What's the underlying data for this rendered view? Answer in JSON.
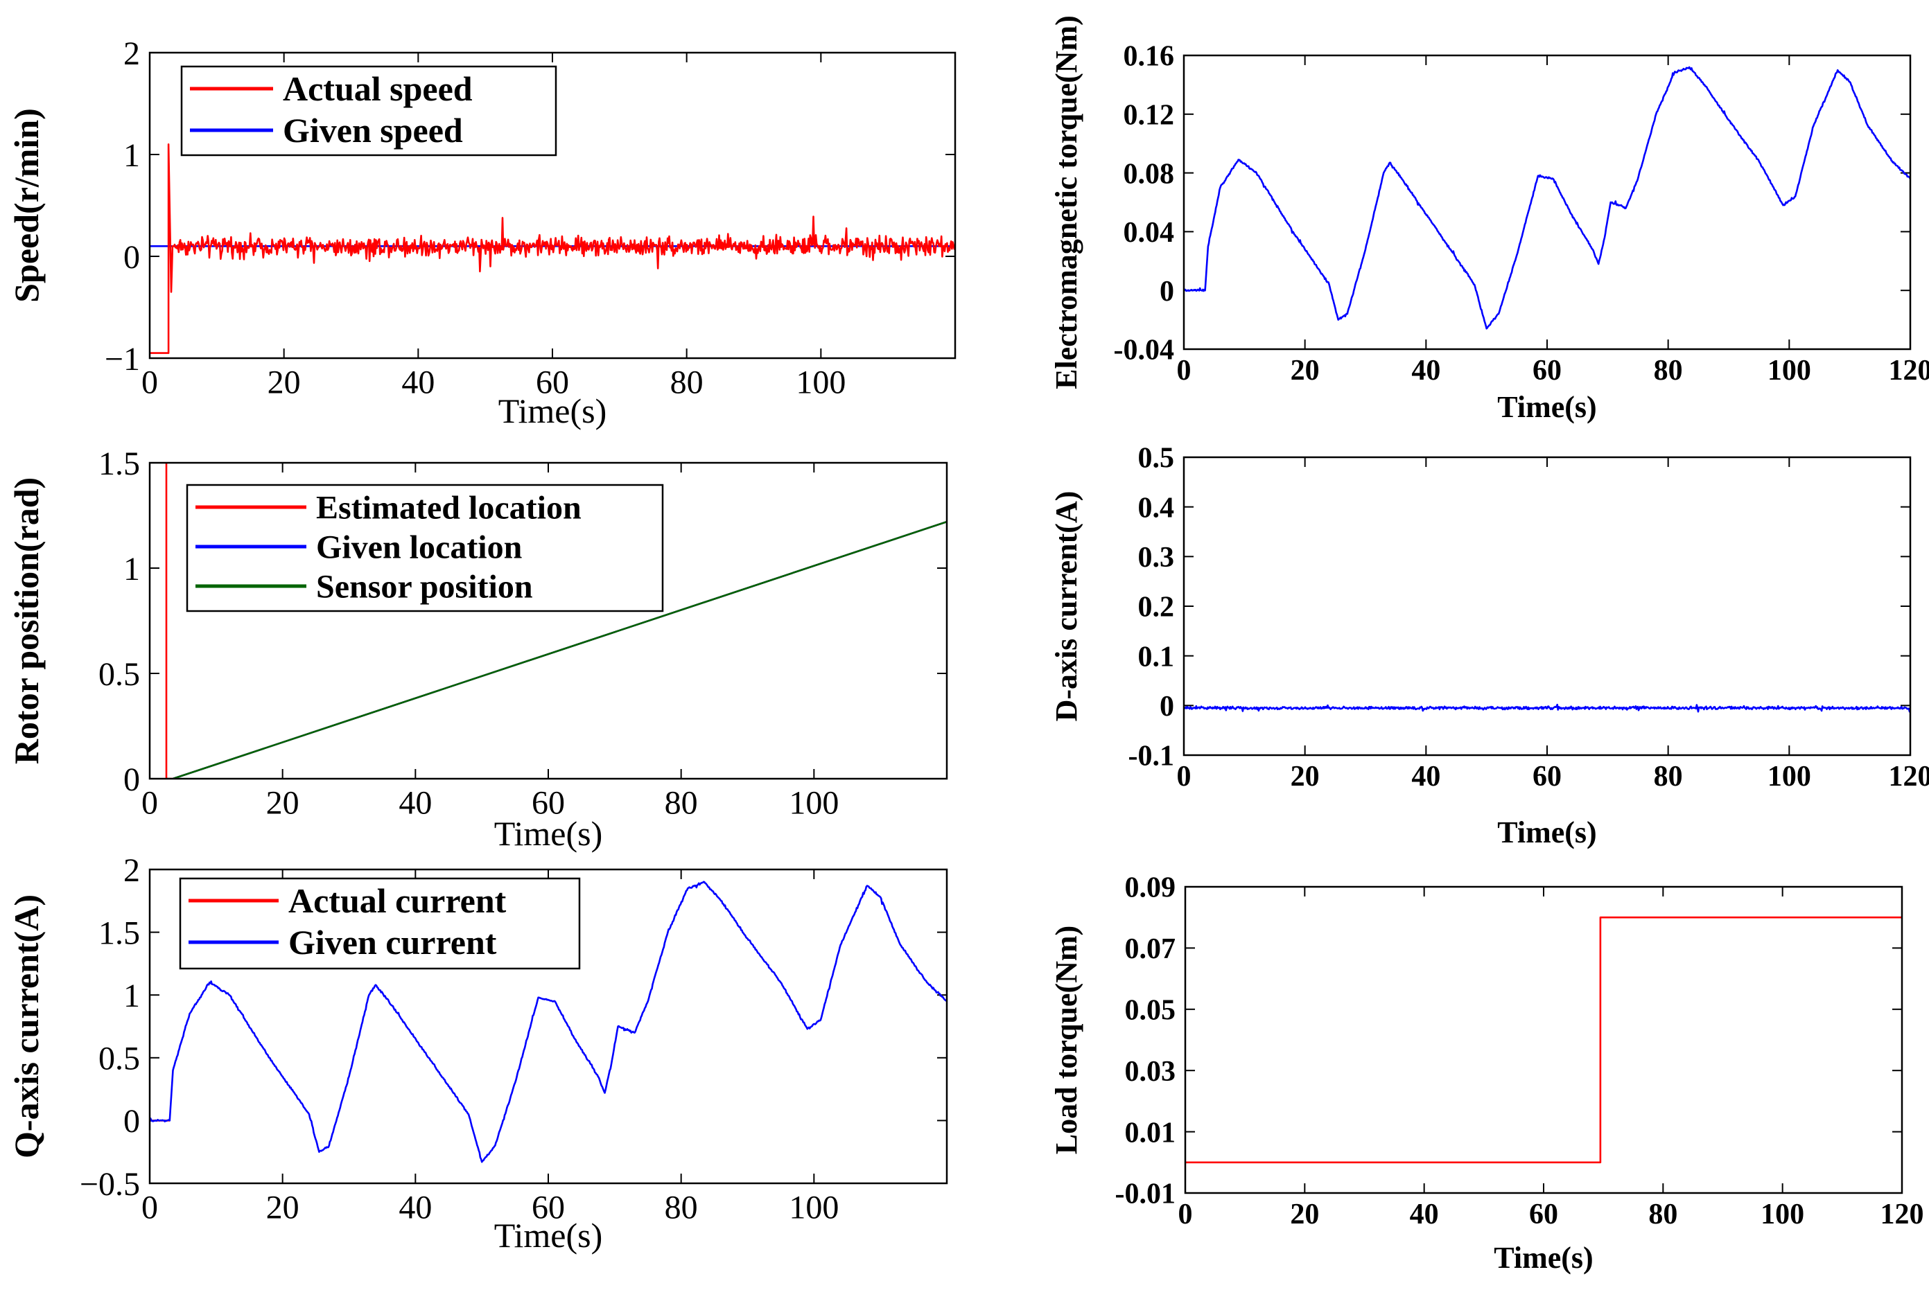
{
  "chart_data": [
    {
      "id": "speed",
      "type": "line",
      "title": "",
      "xlabel": "Time(s)",
      "ylabel": "Speed(r/min)",
      "xlim": [
        0,
        120
      ],
      "ylim": [
        -1,
        2
      ],
      "xticks": [
        0,
        20,
        40,
        60,
        80,
        100
      ],
      "xtick_labels": [
        "0",
        "20",
        "40",
        "60",
        "80",
        "100"
      ],
      "yticks": [
        -1,
        0,
        1,
        2
      ],
      "ytick_labels": [
        "−1",
        "0",
        "1",
        "2"
      ],
      "legend": [
        "Actual speed",
        "Given speed"
      ],
      "legend_position": "top-left",
      "bold_labels": false,
      "series": [
        {
          "name": "Actual speed",
          "color": "#ff0000",
          "x": [
            0,
            2.8,
            2.8,
            3.2,
            3.4,
            3.6,
            120
          ],
          "y": [
            -0.95,
            -0.95,
            1.1,
            -0.35,
            0.1,
            0.1,
            0.1
          ],
          "noise_from": 3.6,
          "noise_amplitude": 0.14
        },
        {
          "name": "Given speed",
          "color": "#0000ff",
          "x": [
            0,
            120
          ],
          "y": [
            0.1,
            0.1
          ]
        }
      ]
    },
    {
      "id": "rotor",
      "type": "line",
      "title": "",
      "xlabel": "Time(s)",
      "ylabel": "Rotor position(rad)",
      "xlim": [
        0,
        120
      ],
      "ylim": [
        0,
        1.5
      ],
      "xticks": [
        0,
        20,
        40,
        60,
        80,
        100
      ],
      "xtick_labels": [
        "0",
        "20",
        "40",
        "60",
        "80",
        "100"
      ],
      "yticks": [
        0,
        0.5,
        1,
        1.5
      ],
      "ytick_labels": [
        "0",
        "0.5",
        "1",
        "1.5"
      ],
      "legend": [
        "Estimated location",
        "Given location",
        "Sensor position"
      ],
      "legend_position": "top-left",
      "bold_labels": false,
      "series": [
        {
          "name": "Estimated location",
          "color": "#ff0000",
          "x": [
            2.5,
            2.5,
            3.5,
            120
          ],
          "y": [
            1.5,
            0,
            0,
            1.22
          ]
        },
        {
          "name": "Given location",
          "color": "#0000ff",
          "x": [
            3.5,
            120
          ],
          "y": [
            0,
            1.22
          ]
        },
        {
          "name": "Sensor position",
          "color": "#006400",
          "x": [
            3.5,
            120
          ],
          "y": [
            0,
            1.22
          ]
        }
      ]
    },
    {
      "id": "qcurrent",
      "type": "line",
      "title": "",
      "xlabel": "Time(s)",
      "ylabel": "Q-axis current(A)",
      "xlim": [
        0,
        120
      ],
      "ylim": [
        -0.5,
        2
      ],
      "xticks": [
        0,
        20,
        40,
        60,
        80,
        100
      ],
      "xtick_labels": [
        "0",
        "20",
        "40",
        "60",
        "80",
        "100"
      ],
      "yticks": [
        -0.5,
        0,
        0.5,
        1,
        1.5,
        2
      ],
      "ytick_labels": [
        "−0.5",
        "0",
        "0.5",
        "1",
        "1.5",
        "2"
      ],
      "legend": [
        "Actual current",
        "Given current"
      ],
      "legend_position": "top-left",
      "bold_labels": false,
      "series": [
        {
          "name": "Actual current",
          "color": "#ff0000",
          "x": [
            0,
            3
          ],
          "y": [
            0,
            0
          ]
        },
        {
          "name": "Given current",
          "color": "#0000ff",
          "x": [
            0,
            3,
            3.5,
            6,
            9,
            12,
            18,
            24,
            25.5,
            27,
            30,
            33,
            34,
            36,
            42,
            48,
            50,
            52,
            55,
            58.5,
            61,
            64,
            67.5,
            68.5,
            69.5,
            70.5,
            72,
            73,
            75,
            78,
            81,
            83.5,
            86,
            90,
            95,
            99,
            101,
            104,
            108,
            110,
            113,
            117,
            120
          ],
          "y": [
            0,
            0,
            0.4,
            0.85,
            1.1,
            1.0,
            0.5,
            0.05,
            -0.25,
            -0.2,
            0.35,
            1.0,
            1.08,
            0.95,
            0.5,
            0.05,
            -0.33,
            -0.2,
            0.3,
            0.98,
            0.95,
            0.65,
            0.35,
            0.22,
            0.45,
            0.75,
            0.72,
            0.7,
            0.95,
            1.5,
            1.85,
            1.9,
            1.75,
            1.45,
            1.1,
            0.73,
            0.8,
            1.4,
            1.87,
            1.78,
            1.4,
            1.1,
            0.95
          ],
          "noise_amplitude": 0.012
        }
      ]
    },
    {
      "id": "torque",
      "type": "line",
      "title": "",
      "xlabel": "Time(s)",
      "ylabel": "Electromagnetic torque(Nm)",
      "xlim": [
        0,
        120
      ],
      "ylim": [
        -0.04,
        0.16
      ],
      "xticks": [
        0,
        20,
        40,
        60,
        80,
        100,
        120
      ],
      "xtick_labels": [
        "0",
        "20",
        "40",
        "60",
        "80",
        "100",
        "120"
      ],
      "yticks": [
        -0.04,
        0,
        0.04,
        0.08,
        0.12,
        0.16
      ],
      "ytick_labels": [
        "-0.04",
        "0",
        "0.04",
        "0.08",
        "0.12",
        "0.16"
      ],
      "bold_labels": true,
      "series": [
        {
          "name": "Electromagnetic torque",
          "color": "#0000ff",
          "x": [
            0,
            3.5,
            4,
            6,
            9,
            12,
            18,
            24,
            25.5,
            27,
            30,
            33,
            34,
            36,
            42,
            48,
            50,
            52,
            55,
            58.5,
            61,
            64,
            67.5,
            68.5,
            69.5,
            70.5,
            72,
            73,
            75,
            78,
            81,
            83.5,
            86,
            90,
            95,
            99,
            101,
            104,
            108,
            110,
            113,
            117,
            120
          ],
          "y": [
            0,
            0,
            0.03,
            0.07,
            0.089,
            0.08,
            0.04,
            0.004,
            -0.02,
            -0.016,
            0.028,
            0.08,
            0.087,
            0.076,
            0.04,
            0.004,
            -0.026,
            -0.016,
            0.024,
            0.078,
            0.076,
            0.052,
            0.028,
            0.018,
            0.036,
            0.06,
            0.058,
            0.056,
            0.076,
            0.12,
            0.148,
            0.152,
            0.14,
            0.116,
            0.088,
            0.058,
            0.064,
            0.112,
            0.15,
            0.142,
            0.112,
            0.088,
            0.076
          ],
          "noise_amplitude": 0.001
        }
      ]
    },
    {
      "id": "dcurrent",
      "type": "line",
      "title": "",
      "xlabel": "Time(s)",
      "ylabel": "D-axis current(A)",
      "xlim": [
        0,
        120
      ],
      "ylim": [
        -0.1,
        0.5
      ],
      "xticks": [
        0,
        20,
        40,
        60,
        80,
        100,
        120
      ],
      "xtick_labels": [
        "0",
        "20",
        "40",
        "60",
        "80",
        "100",
        "120"
      ],
      "yticks": [
        -0.1,
        0,
        0.1,
        0.2,
        0.3,
        0.4,
        0.5
      ],
      "ytick_labels": [
        "-0.1",
        "0",
        "0.1",
        "0.2",
        "0.3",
        "0.4",
        "0.5"
      ],
      "bold_labels": true,
      "series": [
        {
          "name": "D-axis current",
          "color": "#0000ff",
          "x": [
            0,
            120
          ],
          "y": [
            -0.005,
            -0.005
          ],
          "noise_amplitude": 0.004
        }
      ]
    },
    {
      "id": "load",
      "type": "line",
      "title": "",
      "xlabel": "Time(s)",
      "ylabel": "Load torque(Nm)",
      "xlim": [
        0,
        120
      ],
      "ylim": [
        -0.01,
        0.09
      ],
      "xticks": [
        0,
        20,
        40,
        60,
        80,
        100,
        120
      ],
      "xtick_labels": [
        "0",
        "20",
        "40",
        "60",
        "80",
        "100",
        "120"
      ],
      "yticks": [
        -0.01,
        0.01,
        0.03,
        0.05,
        0.07,
        0.09
      ],
      "ytick_labels": [
        "-0.01",
        "0.01",
        "0.03",
        "0.05",
        "0.07",
        "0.09"
      ],
      "bold_labels": true,
      "series": [
        {
          "name": "Load torque",
          "color": "#ff0000",
          "x": [
            0,
            69.5,
            69.5,
            120
          ],
          "y": [
            0,
            0,
            0.08,
            0.08
          ]
        }
      ]
    }
  ]
}
